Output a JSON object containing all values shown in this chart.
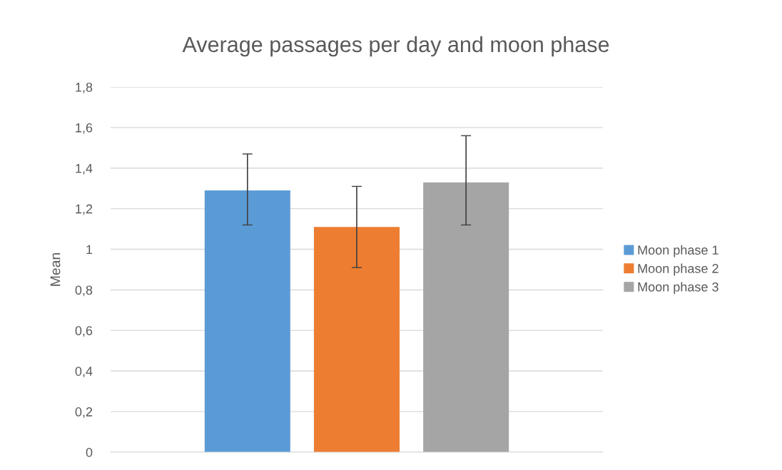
{
  "chart_data": {
    "type": "bar",
    "title": "Average passages per day and moon phase",
    "ylabel": "Mean",
    "categories": [
      null
    ],
    "series": [
      {
        "name": "Moon phase 1",
        "color": "#5b9bd5",
        "values": [
          1.29
        ],
        "errors": [
          [
            1.12,
            1.47
          ]
        ]
      },
      {
        "name": "Moon phase 2",
        "color": "#ed7d31",
        "values": [
          1.11
        ],
        "errors": [
          [
            0.91,
            1.31
          ]
        ]
      },
      {
        "name": "Moon phase 3",
        "color": "#a5a5a5",
        "values": [
          1.33
        ],
        "errors": [
          [
            1.12,
            1.56
          ]
        ]
      }
    ],
    "ylim": [
      0,
      1.8
    ],
    "yticks": [
      {
        "value": 0,
        "label": "0"
      },
      {
        "value": 0.2,
        "label": "0,2"
      },
      {
        "value": 0.4,
        "label": "0,4"
      },
      {
        "value": 0.6,
        "label": "0,6"
      },
      {
        "value": 0.8,
        "label": "0,8"
      },
      {
        "value": 1,
        "label": "1"
      },
      {
        "value": 1.2,
        "label": "1,2"
      },
      {
        "value": 1.4,
        "label": "1,4"
      },
      {
        "value": 1.6,
        "label": "1,6"
      },
      {
        "value": 1.8,
        "label": "1,8"
      }
    ],
    "grid": "y",
    "legend": "right"
  }
}
